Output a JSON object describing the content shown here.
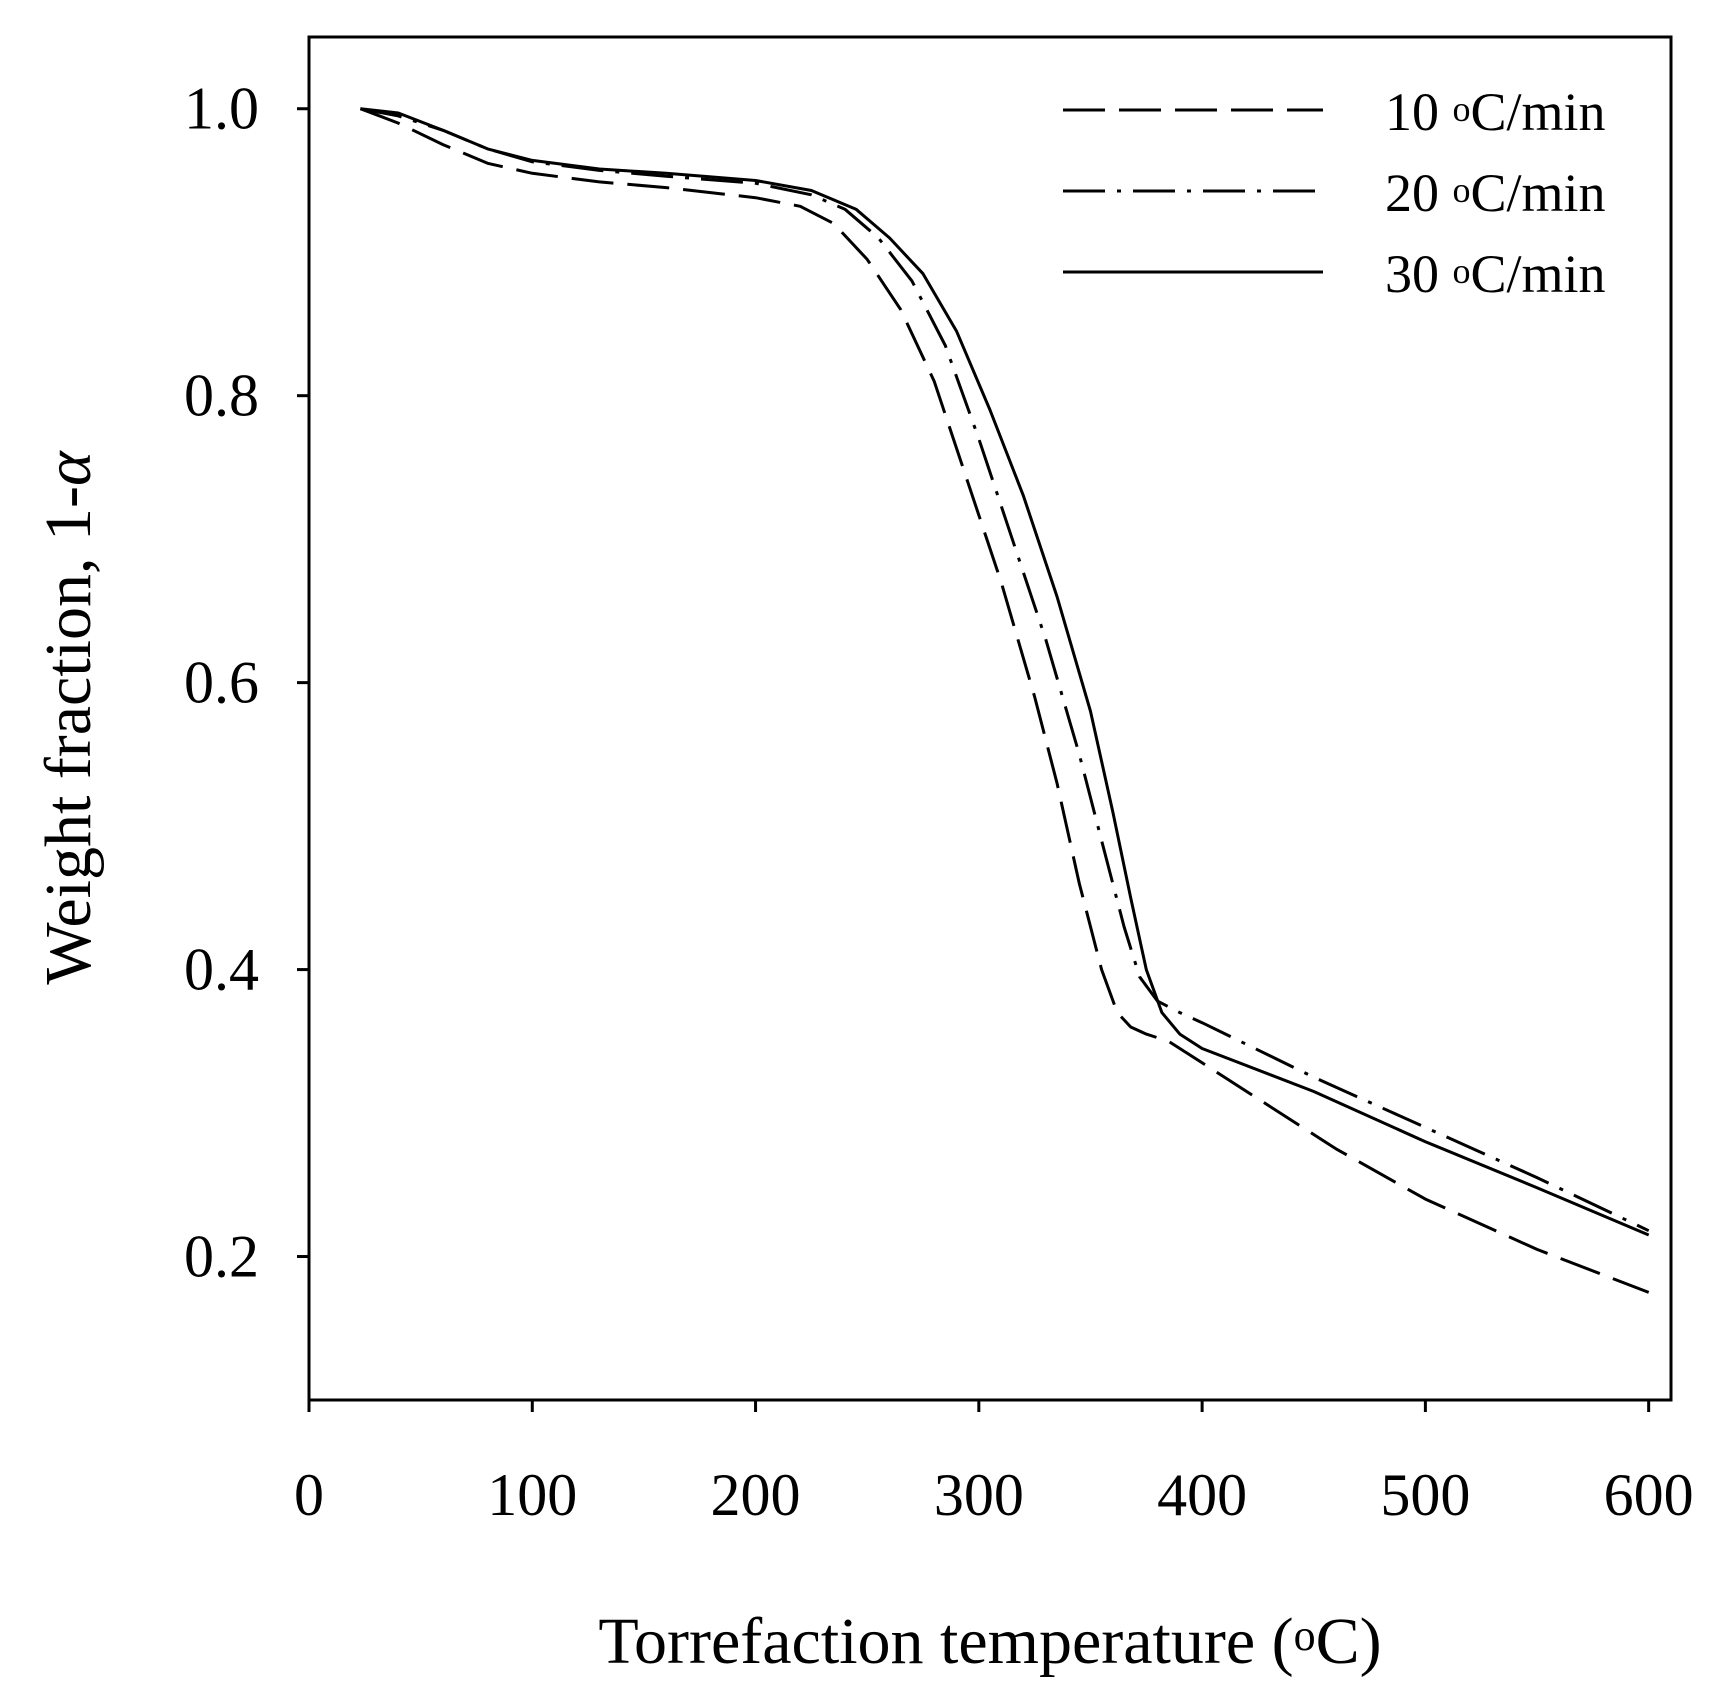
{
  "chart_data": {
    "type": "line",
    "title": "",
    "xlabel": "Torrefaction temperature (",
    "xlabel_sup": "o",
    "xlabel_tail": "C)",
    "ylabel": "Weight fraction, 1-",
    "ylabel_symbol": "α",
    "xlim": [
      0,
      610
    ],
    "ylim": [
      0.1,
      1.05
    ],
    "xticks": [
      0,
      100,
      200,
      300,
      400,
      500,
      600
    ],
    "xtick_labels": [
      "0",
      "100",
      "200",
      "300",
      "400",
      "500",
      "600"
    ],
    "yticks": [
      0.2,
      0.4,
      0.6,
      0.8,
      1.0
    ],
    "ytick_labels": [
      "0.2",
      "0.4",
      "0.6",
      "0.8",
      "1.0"
    ],
    "grid": false,
    "legend_position": "top-right",
    "series": [
      {
        "name": "10 °C/min",
        "label_num": "10 ",
        "label_sup": "o",
        "label_unit": "C/min",
        "style": "dashed",
        "x": [
          23,
          40,
          60,
          80,
          100,
          130,
          160,
          200,
          220,
          235,
          250,
          265,
          280,
          295,
          310,
          325,
          335,
          345,
          355,
          362,
          368,
          375,
          385,
          400,
          430,
          460,
          500,
          550,
          600
        ],
        "y": [
          1.0,
          0.99,
          0.975,
          0.962,
          0.955,
          0.949,
          0.945,
          0.938,
          0.932,
          0.92,
          0.895,
          0.86,
          0.81,
          0.74,
          0.67,
          0.59,
          0.53,
          0.46,
          0.4,
          0.37,
          0.36,
          0.355,
          0.35,
          0.335,
          0.305,
          0.275,
          0.24,
          0.205,
          0.175
        ]
      },
      {
        "name": "20 °C/min",
        "label_num": "20 ",
        "label_sup": "o",
        "label_unit": "C/min",
        "style": "dashdot",
        "x": [
          23,
          40,
          60,
          80,
          100,
          130,
          160,
          200,
          225,
          240,
          255,
          270,
          285,
          300,
          315,
          330,
          345,
          355,
          365,
          372,
          380,
          390,
          400,
          450,
          500,
          550,
          600
        ],
        "y": [
          1.0,
          0.995,
          0.985,
          0.972,
          0.963,
          0.957,
          0.953,
          0.948,
          0.94,
          0.93,
          0.91,
          0.88,
          0.835,
          0.77,
          0.7,
          0.63,
          0.55,
          0.49,
          0.43,
          0.395,
          0.378,
          0.37,
          0.363,
          0.325,
          0.29,
          0.255,
          0.218
        ]
      },
      {
        "name": "30 °C/min",
        "label_num": "30 ",
        "label_sup": "o",
        "label_unit": "C/min",
        "style": "solid",
        "x": [
          23,
          40,
          60,
          80,
          100,
          130,
          160,
          200,
          225,
          245,
          260,
          275,
          290,
          305,
          320,
          335,
          350,
          360,
          368,
          375,
          382,
          390,
          400,
          450,
          500,
          550,
          600
        ],
        "y": [
          1.0,
          0.997,
          0.985,
          0.972,
          0.964,
          0.958,
          0.955,
          0.95,
          0.943,
          0.93,
          0.91,
          0.885,
          0.845,
          0.79,
          0.73,
          0.66,
          0.58,
          0.51,
          0.45,
          0.4,
          0.37,
          0.355,
          0.345,
          0.315,
          0.28,
          0.248,
          0.215
        ]
      }
    ]
  }
}
